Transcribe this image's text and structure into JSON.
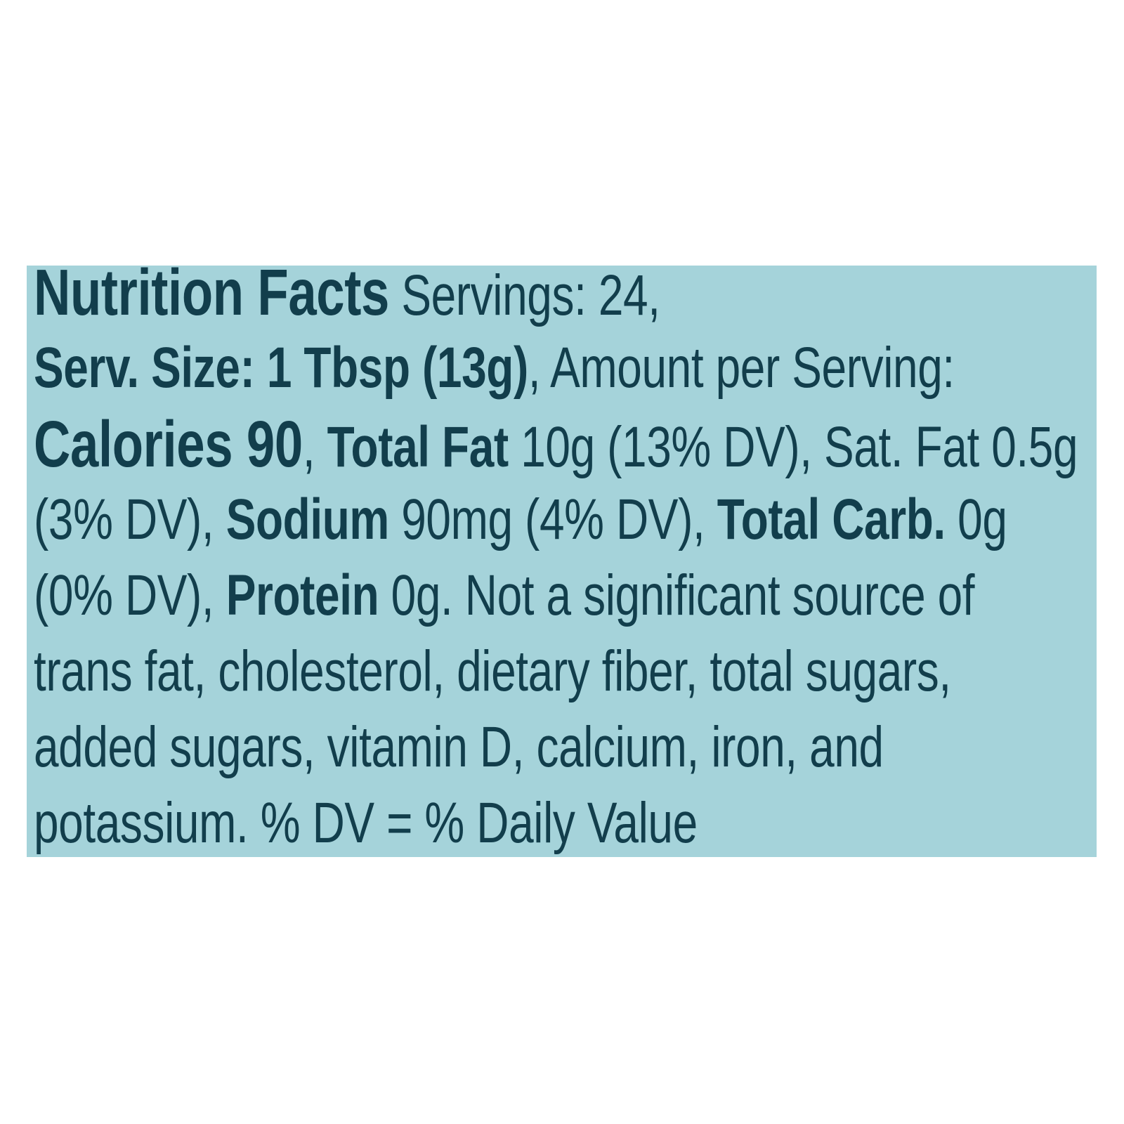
{
  "page": {
    "background": "#ffffff"
  },
  "panel": {
    "background": "#a5d3da",
    "text_color": "#123e4c",
    "title": "Nutrition Facts",
    "servings": "24",
    "serving_size": "1 Tbsp (13g)",
    "calories": "90",
    "total_fat": "10g (13% DV)",
    "saturated_fat": "0.5g (3% DV)",
    "sodium": "90mg (4% DV)",
    "total_carb": "0g (0% DV)",
    "protein": "0g",
    "lines": [
      {
        "segments": [
          {
            "text": "Nutrition Facts",
            "style": "bold-xl"
          },
          {
            "text": " Servings: 24,",
            "style": "regular"
          }
        ]
      },
      {
        "segments": [
          {
            "text": "Serv. Size: 1 Tbsp (13g)",
            "style": "bold"
          },
          {
            "text": ", Amount per Serving:",
            "style": "regular"
          }
        ]
      },
      {
        "segments": [
          {
            "text": "Calories 90",
            "style": "bold-xl"
          },
          {
            "text": ", ",
            "style": "regular"
          },
          {
            "text": "Total Fat",
            "style": "bold"
          },
          {
            "text": " 10g (13% DV), Sat. Fat 0.5g",
            "style": "regular"
          }
        ]
      },
      {
        "segments": [
          {
            "text": "(3% DV), ",
            "style": "regular"
          },
          {
            "text": "Sodium",
            "style": "bold"
          },
          {
            "text": " 90mg (4% DV), ",
            "style": "regular"
          },
          {
            "text": "Total Carb.",
            "style": "bold"
          },
          {
            "text": " 0g",
            "style": "regular"
          }
        ]
      },
      {
        "segments": [
          {
            "text": "(0% DV), ",
            "style": "regular"
          },
          {
            "text": "Protein",
            "style": "bold"
          },
          {
            "text": " 0g. Not a significant source of",
            "style": "regular"
          }
        ]
      },
      {
        "segments": [
          {
            "text": "trans fat, cholesterol, dietary fiber, total sugars,",
            "style": "regular"
          }
        ]
      },
      {
        "segments": [
          {
            "text": "added sugars, vitamin D, calcium, iron, and",
            "style": "regular"
          }
        ]
      },
      {
        "segments": [
          {
            "text": "potassium. % DV = % Daily Value",
            "style": "regular"
          }
        ]
      }
    ]
  }
}
